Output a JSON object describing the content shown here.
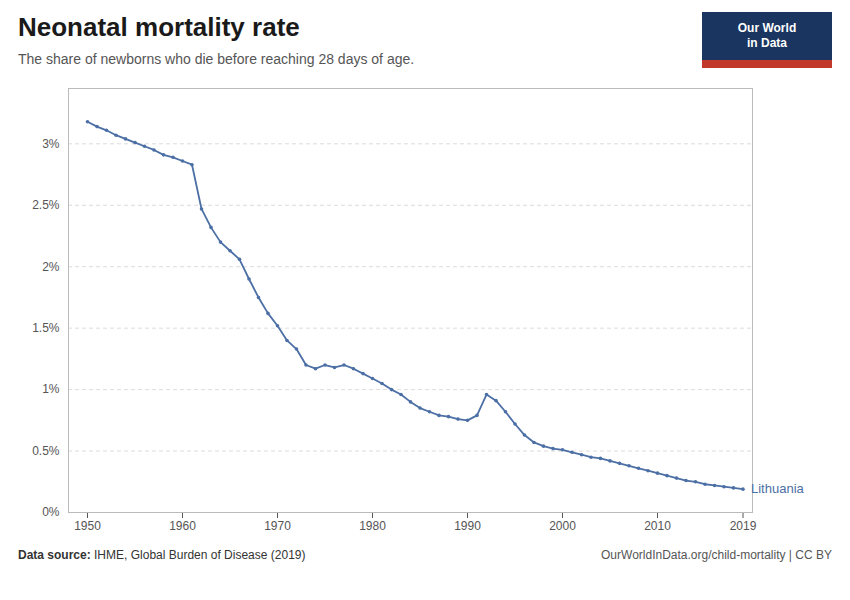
{
  "chart_data": {
    "type": "line",
    "title": "Neonatal mortality rate",
    "subtitle": "The share of newborns who die before reaching 28 days of age.",
    "annotations": [
      "Data source: IHME, Global Burden of Disease (2019)",
      "OurWorldInData.org/child-mortality | CC BY",
      "Our World",
      "in Data"
    ],
    "x": [
      1950,
      1951,
      1952,
      1953,
      1954,
      1955,
      1956,
      1957,
      1958,
      1959,
      1960,
      1961,
      1962,
      1963,
      1964,
      1965,
      1966,
      1967,
      1968,
      1969,
      1970,
      1971,
      1972,
      1973,
      1974,
      1975,
      1976,
      1977,
      1978,
      1979,
      1980,
      1981,
      1982,
      1983,
      1984,
      1985,
      1986,
      1987,
      1988,
      1989,
      1990,
      1991,
      1992,
      1993,
      1994,
      1995,
      1996,
      1997,
      1998,
      1999,
      2000,
      2001,
      2002,
      2003,
      2004,
      2005,
      2006,
      2007,
      2008,
      2009,
      2010,
      2011,
      2012,
      2013,
      2014,
      2015,
      2016,
      2017,
      2018,
      2019
    ],
    "series": [
      {
        "name": "Lithuania",
        "color": "#4C6FA5",
        "marker": "circle",
        "values": [
          0.0318,
          0.0314,
          0.0311,
          0.0307,
          0.0304,
          0.0301,
          0.0298,
          0.0295,
          0.0291,
          0.0289,
          0.0286,
          0.0283,
          0.0247,
          0.0232,
          0.022,
          0.0213,
          0.0206,
          0.019,
          0.0175,
          0.0162,
          0.0152,
          0.014,
          0.0133,
          0.012,
          0.0117,
          0.012,
          0.0118,
          0.012,
          0.0117,
          0.0113,
          0.0109,
          0.0105,
          0.01,
          0.0096,
          0.009,
          0.0085,
          0.0082,
          0.0079,
          0.0078,
          0.0076,
          0.0075,
          0.0079,
          0.0096,
          0.0091,
          0.0082,
          0.0072,
          0.0063,
          0.0057,
          0.0054,
          0.0052,
          0.0051,
          0.0049,
          0.0047,
          0.0045,
          0.0044,
          0.0042,
          0.004,
          0.0038,
          0.0036,
          0.0034,
          0.0032,
          0.003,
          0.0028,
          0.0026,
          0.0025,
          0.0023,
          0.0022,
          0.0021,
          0.002,
          0.0019
        ]
      }
    ],
    "xlim": [
      1948,
      2020
    ],
    "xticks": [
      1950,
      1960,
      1970,
      1980,
      1990,
      2000,
      2010,
      2019
    ],
    "ylim": [
      0,
      0.0345
    ],
    "yticks": [
      {
        "value": 0,
        "label": "0%"
      },
      {
        "value": 0.005,
        "label": "0.5%"
      },
      {
        "value": 0.01,
        "label": "1%"
      },
      {
        "value": 0.015,
        "label": "1.5%"
      },
      {
        "value": 0.02,
        "label": "2%"
      },
      {
        "value": 0.025,
        "label": "2.5%"
      },
      {
        "value": 0.03,
        "label": "3%"
      }
    ],
    "grid": true
  }
}
